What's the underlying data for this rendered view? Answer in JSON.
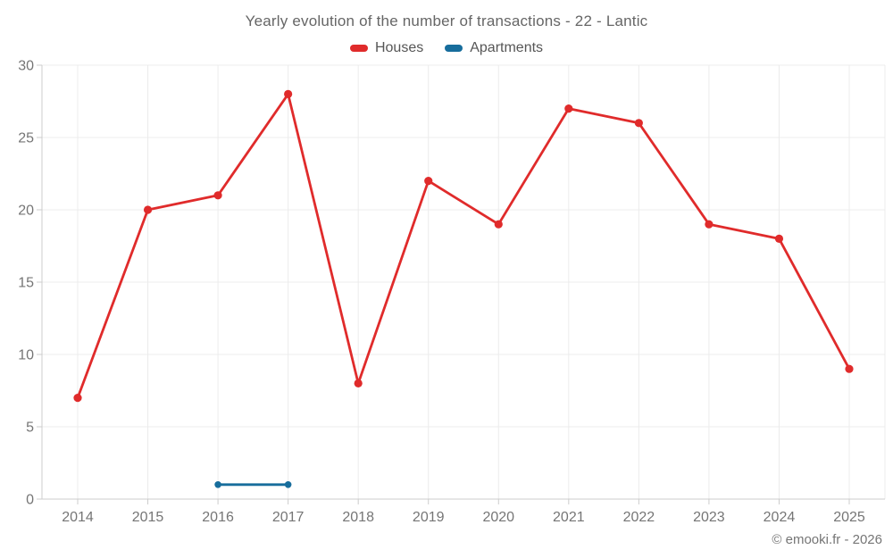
{
  "footer": {
    "credit": "© emooki.fr - 2026"
  },
  "chart_data": {
    "type": "line",
    "title": "Yearly evolution of the number of transactions - 22 - Lantic",
    "categories": [
      "2014",
      "2015",
      "2016",
      "2017",
      "2018",
      "2019",
      "2020",
      "2021",
      "2022",
      "2023",
      "2024",
      "2025"
    ],
    "series": [
      {
        "name": "Houses",
        "color": "#e02b2b",
        "values": [
          7,
          20,
          21,
          28,
          8,
          22,
          19,
          27,
          26,
          19,
          18,
          9
        ]
      },
      {
        "name": "Apartments",
        "color": "#176d9c",
        "values": [
          null,
          null,
          1,
          1,
          null,
          null,
          null,
          null,
          null,
          null,
          null,
          null
        ]
      }
    ],
    "ylim": [
      0,
      30
    ],
    "yticks": [
      0,
      5,
      10,
      15,
      20,
      25,
      30
    ],
    "grid": true,
    "legend_position": "top",
    "xlabel": "",
    "ylabel": "",
    "colors": {
      "gridline": "#ececec",
      "axis": "#cccccc",
      "tick_label": "#757575",
      "title_text": "#666666",
      "legend_text": "#565656",
      "footer_text": "#757575"
    }
  }
}
